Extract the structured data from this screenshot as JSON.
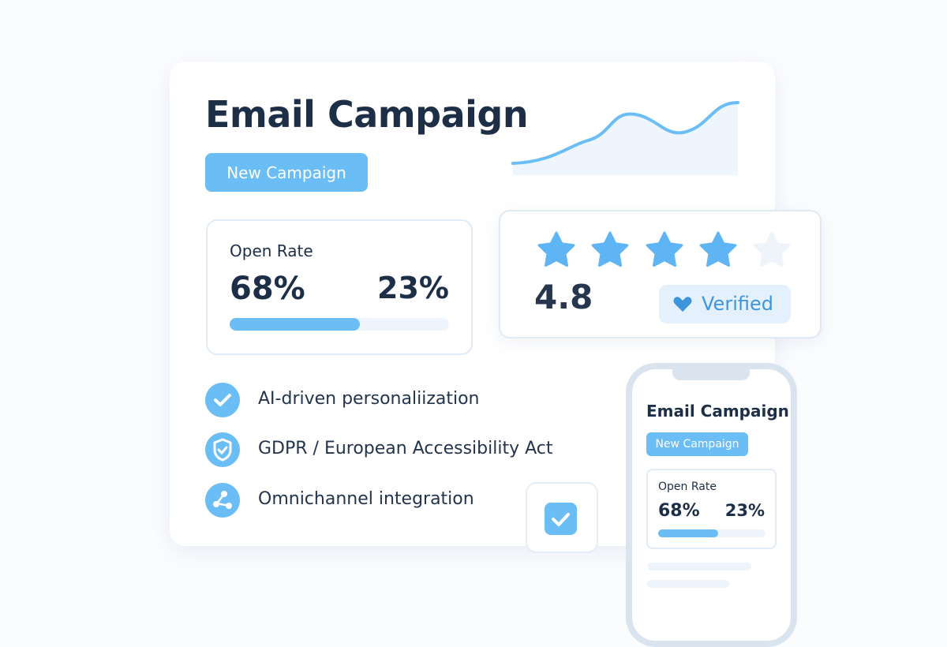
{
  "main": {
    "title": "Email Campaign",
    "button": "New Campaign",
    "stat_card": {
      "label": "Open Rate",
      "primary": "68%",
      "secondary": "23%"
    },
    "features": [
      "AI-driven personaliization",
      "GDPR / European Accessibility Act",
      "Omnichannel integration"
    ]
  },
  "rating": {
    "score": "4.8",
    "badge": "Verified"
  },
  "phone": {
    "title": "Email Campaign",
    "button": "New Campaign",
    "stat_card": {
      "label": "Open Rate",
      "primary": "68%",
      "secondary": "23%"
    }
  }
}
